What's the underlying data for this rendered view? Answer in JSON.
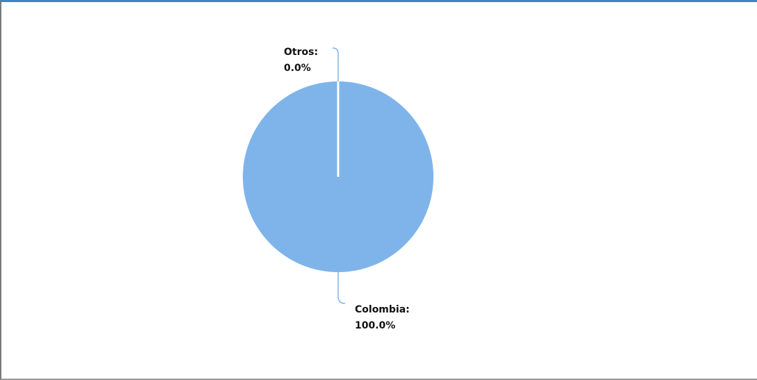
{
  "chart_data": {
    "type": "pie",
    "slices": [
      {
        "name": "Otros",
        "value": 0.0,
        "label_name": "Otros:",
        "label_value": "0.0%"
      },
      {
        "name": "Colombia",
        "value": 100.0,
        "label_name": "Colombia:",
        "label_value": "100.0%"
      }
    ],
    "colors": {
      "slice": "#7eb4ea",
      "separator": "#ffffff",
      "leader": "#7eb4ea",
      "frame_top": "#3c84c4"
    },
    "legend": "none"
  }
}
